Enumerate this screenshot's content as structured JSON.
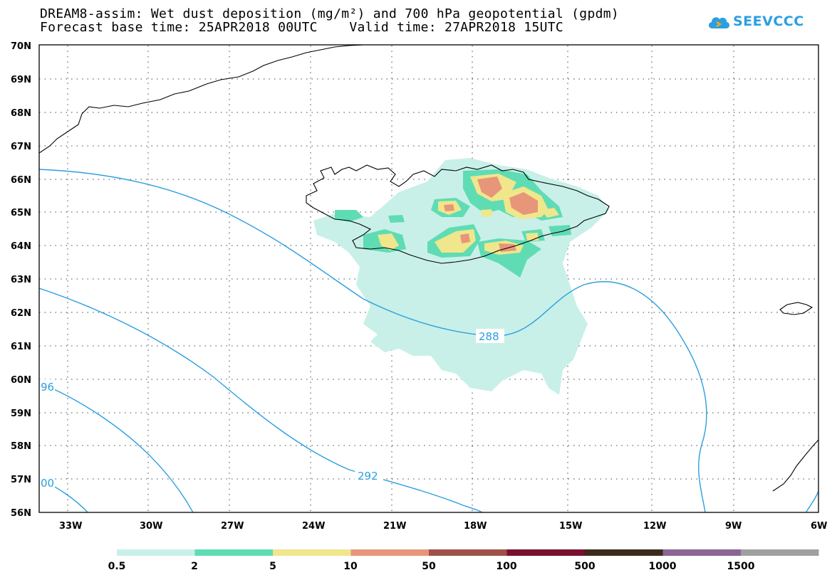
{
  "header": {
    "title_line1": "DREAM8-assim: Wet dust deposition (mg/m²) and 700 hPa geopotential (gpdm)",
    "title_line2": "Forecast base time: 25APR2018 00UTC    Valid time: 27APR2018 15UTC"
  },
  "logo": {
    "text": "SEEVCCC",
    "icon": "cloud-icon",
    "color": "#2b9fe0"
  },
  "map": {
    "lat_labels": [
      "70N",
      "69N",
      "68N",
      "67N",
      "66N",
      "65N",
      "64N",
      "63N",
      "62N",
      "61N",
      "60N",
      "59N",
      "58N",
      "57N",
      "56N"
    ],
    "lon_labels": [
      "33W",
      "30W",
      "27W",
      "24W",
      "21W",
      "18W",
      "15W",
      "12W",
      "9W",
      "6W"
    ],
    "contour_labels": [
      "288",
      "292",
      "96",
      "00"
    ],
    "contour_color": "#2b9fe0",
    "coast_color": "#000000"
  },
  "colorbar": {
    "colors": [
      "#c8f0e8",
      "#5fdcb4",
      "#f0e68c",
      "#e8967a",
      "#a0504a",
      "#7a1030",
      "#3c2a1a",
      "#8c6496",
      "#a0a0a0"
    ],
    "labels": [
      "0.5",
      "2",
      "5",
      "10",
      "50",
      "100",
      "500",
      "1000",
      "1500"
    ]
  }
}
